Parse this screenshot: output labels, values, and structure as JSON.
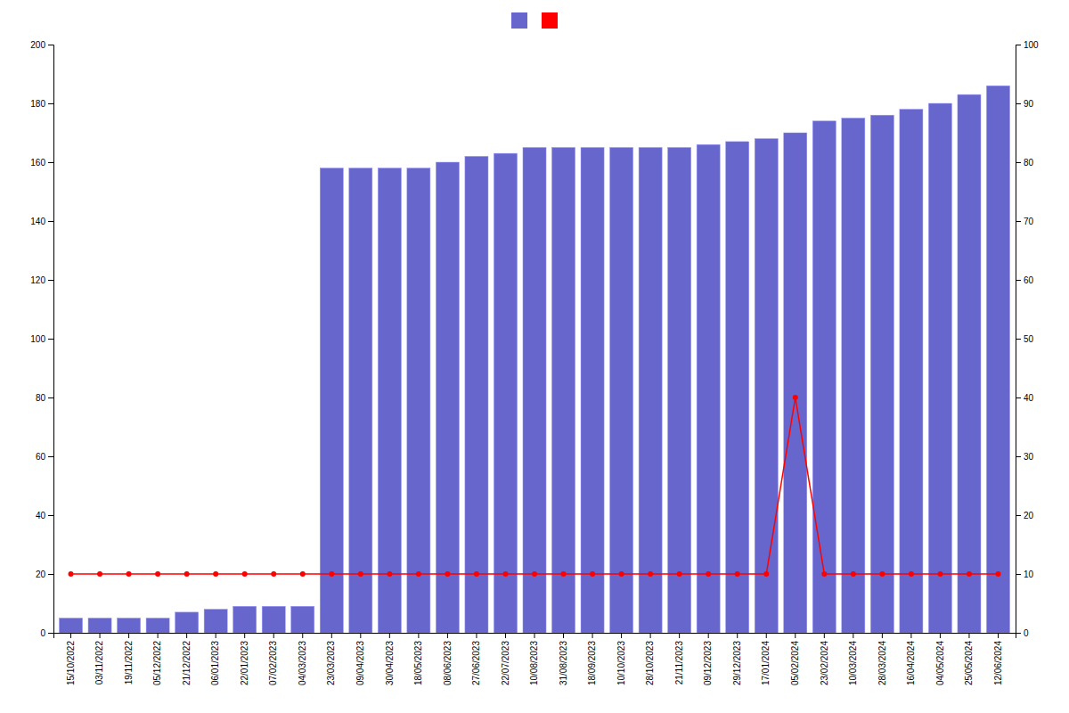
{
  "chart_data": {
    "type": "bar",
    "categories": [
      "15/10/2022",
      "03/11/2022",
      "19/11/2022",
      "05/12/2022",
      "21/12/2022",
      "06/01/2023",
      "22/01/2023",
      "07/02/2023",
      "04/03/2023",
      "23/03/2023",
      "09/04/2023",
      "30/04/2023",
      "18/05/2023",
      "08/06/2023",
      "27/06/2023",
      "22/07/2023",
      "10/08/2023",
      "31/08/2023",
      "18/09/2023",
      "10/10/2023",
      "28/10/2023",
      "21/11/2023",
      "09/12/2023",
      "29/12/2023",
      "17/01/2024",
      "05/02/2024",
      "23/02/2024",
      "10/03/2024",
      "28/03/2024",
      "16/04/2024",
      "04/05/2024",
      "25/05/2024",
      "12/06/2024"
    ],
    "series": [
      {
        "type": "bar",
        "color": "#6666cc",
        "values": [
          5,
          5,
          5,
          5,
          7,
          8,
          9,
          9,
          9,
          158,
          158,
          158,
          158,
          160,
          162,
          163,
          165,
          165,
          165,
          165,
          165,
          165,
          166,
          167,
          168,
          170,
          174,
          175,
          176,
          178,
          180,
          183,
          186
        ]
      },
      {
        "type": "line",
        "color": "#ff0000",
        "marker": "circle",
        "values": [
          20,
          20,
          20,
          20,
          20,
          20,
          20,
          20,
          20,
          20,
          20,
          20,
          20,
          20,
          20,
          20,
          20,
          20,
          20,
          20,
          20,
          20,
          20,
          20,
          20,
          80,
          20,
          20,
          20,
          20,
          20,
          20,
          20
        ]
      }
    ],
    "ylim": [
      0,
      200
    ],
    "yticks": [
      0,
      20,
      40,
      60,
      80,
      100,
      120,
      140,
      160,
      180,
      200
    ],
    "y2lim": [
      0,
      100
    ],
    "y2ticks": [
      0,
      10,
      20,
      30,
      40,
      50,
      60,
      70,
      80,
      90,
      100
    ],
    "grid": false,
    "legend": "top"
  }
}
